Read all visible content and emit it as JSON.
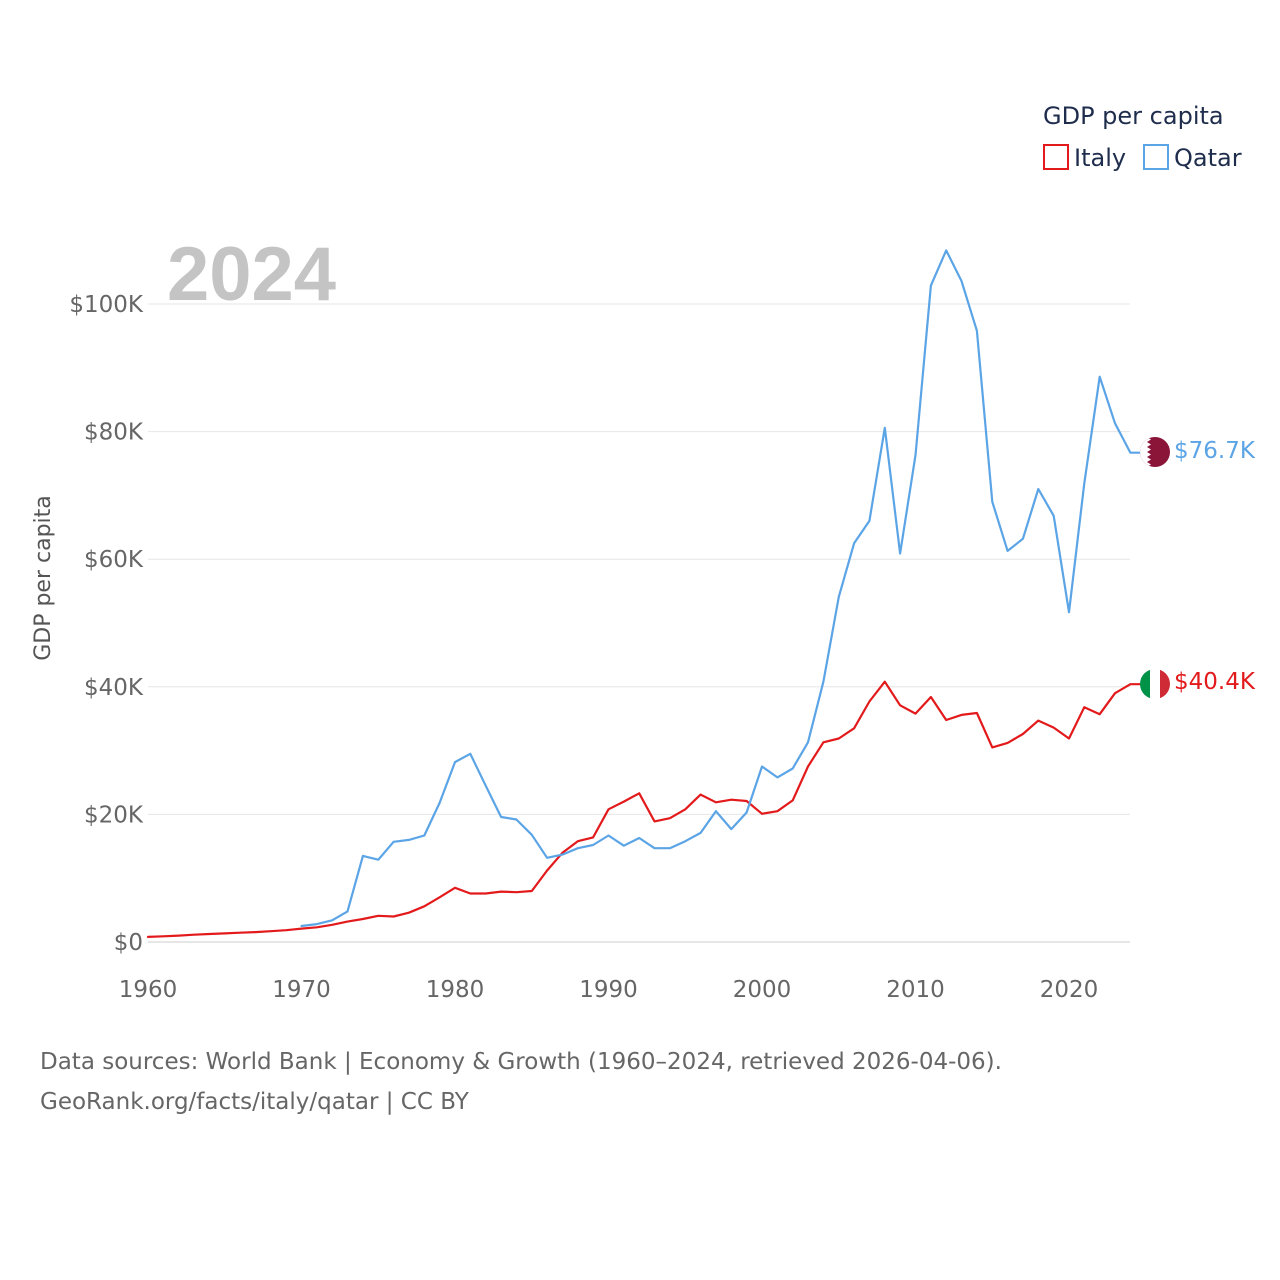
{
  "legend": {
    "title": "GDP per capita",
    "items": [
      {
        "name": "Italy",
        "color": "#e31a1c"
      },
      {
        "name": "Qatar",
        "color": "#5ba4e6"
      }
    ]
  },
  "current_year": "2024",
  "chart_data": {
    "type": "line",
    "title": "GDP per capita",
    "xlabel": "",
    "ylabel": "GDP per capita",
    "xlim": [
      1960,
      2024
    ],
    "ylim": [
      0,
      100000
    ],
    "x_ticks": [
      1960,
      1970,
      1980,
      1990,
      2000,
      2010,
      2020
    ],
    "x_tick_labels": [
      "1960",
      "1970",
      "1980",
      "1990",
      "2000",
      "2010",
      "2020"
    ],
    "y_ticks": [
      0,
      20000,
      40000,
      60000,
      80000,
      100000
    ],
    "y_tick_labels": [
      "$0",
      "$20K",
      "$40K",
      "$60K",
      "$80K",
      "$100K"
    ],
    "grid": true,
    "legend_position": "top-right",
    "series": [
      {
        "name": "Italy",
        "color": "#e31a1c",
        "end_label": "$40.4K",
        "flag": "italy",
        "x": [
          1960,
          1961,
          1962,
          1963,
          1964,
          1965,
          1966,
          1967,
          1968,
          1969,
          1970,
          1971,
          1972,
          1973,
          1974,
          1975,
          1976,
          1977,
          1978,
          1979,
          1980,
          1981,
          1982,
          1983,
          1984,
          1985,
          1986,
          1987,
          1988,
          1989,
          1990,
          1991,
          1992,
          1993,
          1994,
          1995,
          1996,
          1997,
          1998,
          1999,
          2000,
          2001,
          2002,
          2003,
          2004,
          2005,
          2006,
          2007,
          2008,
          2009,
          2010,
          2011,
          2012,
          2013,
          2014,
          2015,
          2016,
          2017,
          2018,
          2019,
          2020,
          2021,
          2022,
          2023,
          2024
        ],
        "values": [
          800,
          900,
          1000,
          1150,
          1250,
          1350,
          1450,
          1550,
          1700,
          1850,
          2100,
          2300,
          2700,
          3200,
          3600,
          4100,
          4000,
          4600,
          5600,
          7000,
          8500,
          7600,
          7600,
          7900,
          7800,
          8000,
          11200,
          14000,
          15800,
          16400,
          20800,
          22000,
          23300,
          18900,
          19400,
          20800,
          23100,
          21900,
          22300,
          22100,
          20100,
          20500,
          22200,
          27500,
          31300,
          31900,
          33500,
          37700,
          40800,
          37100,
          35800,
          38400,
          34800,
          35600,
          35900,
          30500,
          31200,
          32600,
          34700,
          33600,
          31900,
          36800,
          35700,
          39000,
          40400
        ]
      },
      {
        "name": "Qatar",
        "color": "#5ba4e6",
        "end_label": "$76.7K",
        "flag": "qatar",
        "x": [
          1970,
          1971,
          1972,
          1973,
          1974,
          1975,
          1976,
          1977,
          1978,
          1979,
          1980,
          1981,
          1982,
          1983,
          1984,
          1985,
          1986,
          1987,
          1988,
          1989,
          1990,
          1991,
          1992,
          1993,
          1994,
          1995,
          1996,
          1997,
          1998,
          1999,
          2000,
          2001,
          2002,
          2003,
          2004,
          2005,
          2006,
          2007,
          2008,
          2009,
          2010,
          2011,
          2012,
          2013,
          2014,
          2015,
          2016,
          2017,
          2018,
          2019,
          2020,
          2021,
          2022,
          2023,
          2024
        ],
        "values": [
          2500,
          2800,
          3400,
          4800,
          13500,
          12900,
          15700,
          16000,
          16700,
          21800,
          28200,
          29500,
          24500,
          19600,
          19200,
          16800,
          13200,
          13700,
          14700,
          15200,
          16700,
          15100,
          16300,
          14700,
          14700,
          15800,
          17100,
          20500,
          17700,
          20300,
          27500,
          25800,
          27200,
          31300,
          40800,
          54100,
          62500,
          66000,
          80600,
          60900,
          76300,
          102900,
          108400,
          103600,
          95800,
          69000,
          61300,
          63200,
          71000,
          66800,
          51700,
          71900,
          88600,
          81300,
          76700
        ]
      }
    ]
  },
  "source": {
    "line1": "Data sources: World Bank | Economy & Growth (1960–2024, retrieved 2026-04-06).",
    "line2": "GeoRank.org/facts/italy/qatar | CC BY"
  }
}
